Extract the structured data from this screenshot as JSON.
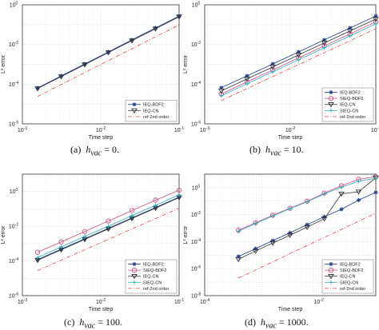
{
  "captions": [
    {
      "label": "(a)",
      "symbol": "h",
      "subscript": "vac",
      "rest": " = 0."
    },
    {
      "label": "(b)",
      "symbol": "h",
      "subscript": "vac",
      "rest": " = 10."
    },
    {
      "label": "(c)",
      "symbol": "h",
      "subscript": "vac",
      "rest": " = 100."
    },
    {
      "label": "(d)",
      "symbol": "h",
      "subscript": "vac",
      "rest": " = 1000."
    }
  ],
  "styles": {
    "IEQ-BDF2": {
      "color": "#1f3d8a",
      "marker": "star",
      "dash": ""
    },
    "SIEQ-BDF2": {
      "color": "#d0508a",
      "marker": "circle",
      "dash": ""
    },
    "IEQ-CN": {
      "color": "#333333",
      "marker": "triangle",
      "dash": ""
    },
    "SIEQ-CN": {
      "color": "#2ab0b0",
      "marker": "plus",
      "dash": ""
    },
    "ref-2nd order": {
      "color": "#e34a4a",
      "marker": "none",
      "dash": "5,2,1,2"
    }
  },
  "chart_data": [
    {
      "type": "line",
      "xscale": "log",
      "yscale": "log",
      "xlabel": "Time step",
      "ylabel": "L² error",
      "xlim": [
        0.001,
        0.1
      ],
      "ylim": [
        1e-06,
        1
      ],
      "xticks": [
        {
          "v": 0.001,
          "base": "10",
          "exp": "-3"
        },
        {
          "v": 0.01,
          "base": "10",
          "exp": "-2"
        },
        {
          "v": 0.1,
          "base": "10",
          "exp": "-1"
        }
      ],
      "yticks": [
        {
          "v": 1e-06,
          "base": "10",
          "exp": "-6"
        },
        {
          "v": 0.0001,
          "base": "10",
          "exp": "-4"
        },
        {
          "v": 0.01,
          "base": "10",
          "exp": "-2"
        },
        {
          "v": 1,
          "base": "10",
          "exp": "0"
        }
      ],
      "legend": "bottom-right",
      "series": [
        {
          "name": "IEQ-BDF2",
          "x": [
            0.0015625,
            0.003125,
            0.00625,
            0.0125,
            0.025,
            0.05,
            0.1
          ],
          "y": [
            6.4e-05,
            0.00026,
            0.00105,
            0.0042,
            0.017,
            0.068,
            0.27
          ]
        },
        {
          "name": "IEQ-CN",
          "x": [
            0.0015625,
            0.003125,
            0.00625,
            0.0125,
            0.025,
            0.05,
            0.1
          ],
          "y": [
            6e-05,
            0.00024,
            0.00096,
            0.0039,
            0.0155,
            0.062,
            0.25
          ]
        },
        {
          "name": "ref-2nd order",
          "x": [
            0.0015625,
            0.1
          ],
          "y": [
            2.4e-05,
            0.098
          ]
        }
      ]
    },
    {
      "type": "line",
      "xscale": "log",
      "yscale": "log",
      "xlabel": "Time step",
      "ylabel": "L² error",
      "xlim": [
        0.001,
        0.1
      ],
      "ylim": [
        1e-06,
        1
      ],
      "xticks": [
        {
          "v": 0.001,
          "base": "10",
          "exp": "-3"
        },
        {
          "v": 0.01,
          "base": "10",
          "exp": "-2"
        },
        {
          "v": 0.1,
          "base": "10",
          "exp": "-1"
        }
      ],
      "yticks": [
        {
          "v": 1e-06,
          "base": "10",
          "exp": "-6"
        },
        {
          "v": 0.0001,
          "base": "10",
          "exp": "-4"
        },
        {
          "v": 0.01,
          "base": "10",
          "exp": "-2"
        },
        {
          "v": 1,
          "base": "10",
          "exp": "0"
        }
      ],
      "legend": "bottom-right",
      "series": [
        {
          "name": "IEQ-BDF2",
          "x": [
            0.0015625,
            0.003125,
            0.00625,
            0.0125,
            0.025,
            0.05,
            0.1
          ],
          "y": [
            6.6e-05,
            0.00026,
            0.00105,
            0.0042,
            0.017,
            0.068,
            0.27
          ]
        },
        {
          "name": "SIEQ-BDF2",
          "x": [
            0.0015625,
            0.003125,
            0.00625,
            0.0125,
            0.025,
            0.05,
            0.1
          ],
          "y": [
            3.2e-05,
            0.00013,
            0.00052,
            0.0021,
            0.0085,
            0.034,
            0.14
          ]
        },
        {
          "name": "IEQ-CN",
          "x": [
            0.0015625,
            0.003125,
            0.00625,
            0.0125,
            0.025,
            0.05,
            0.1
          ],
          "y": [
            4.6e-05,
            0.000185,
            0.00074,
            0.003,
            0.012,
            0.048,
            0.19
          ]
        },
        {
          "name": "SIEQ-CN",
          "x": [
            0.0015625,
            0.003125,
            0.00625,
            0.0125,
            0.025,
            0.05,
            0.1
          ],
          "y": [
            2.6e-05,
            0.000105,
            0.00042,
            0.0017,
            0.0068,
            0.027,
            0.11
          ]
        },
        {
          "name": "ref-2nd order",
          "x": [
            0.0015625,
            0.1
          ],
          "y": [
            1.5e-05,
            0.062
          ]
        }
      ]
    },
    {
      "type": "line",
      "xscale": "log",
      "yscale": "log",
      "xlabel": "Time step",
      "ylabel": "L² error",
      "xlim": [
        0.001,
        0.1
      ],
      "ylim": [
        1e-06,
        10
      ],
      "xticks": [
        {
          "v": 0.001,
          "base": "10",
          "exp": "-3"
        },
        {
          "v": 0.01,
          "base": "10",
          "exp": "-2"
        },
        {
          "v": 0.1,
          "base": "10",
          "exp": "-1"
        }
      ],
      "yticks": [
        {
          "v": 1e-06,
          "base": "10",
          "exp": "-6"
        },
        {
          "v": 0.0001,
          "base": "10",
          "exp": "-4"
        },
        {
          "v": 0.01,
          "base": "10",
          "exp": "-2"
        },
        {
          "v": 1,
          "base": "10",
          "exp": "0"
        }
      ],
      "legend": "bottom-right",
      "series": [
        {
          "name": "IEQ-BDF2",
          "x": [
            0.0015625,
            0.003125,
            0.00625,
            0.0125,
            0.025,
            0.05,
            0.1
          ],
          "y": [
            0.00012,
            0.00048,
            0.0019,
            0.0076,
            0.03,
            0.12,
            0.48
          ]
        },
        {
          "name": "SIEQ-BDF2",
          "x": [
            0.0015625,
            0.003125,
            0.00625,
            0.0125,
            0.025,
            0.05,
            0.1
          ],
          "y": [
            0.00032,
            0.00125,
            0.005,
            0.02,
            0.08,
            0.32,
            1.2
          ]
        },
        {
          "name": "IEQ-CN",
          "x": [
            0.0015625,
            0.003125,
            0.00625,
            0.0125,
            0.025,
            0.05,
            0.1
          ],
          "y": [
            0.00011,
            0.00044,
            0.00175,
            0.007,
            0.028,
            0.11,
            0.45
          ]
        },
        {
          "name": "SIEQ-CN",
          "x": [
            0.0015625,
            0.003125,
            0.00625,
            0.0125,
            0.025,
            0.05,
            0.1
          ],
          "y": [
            0.00016,
            0.00064,
            0.0026,
            0.01,
            0.041,
            0.16,
            0.65
          ]
        },
        {
          "name": "ref-2nd order",
          "x": [
            0.0015625,
            0.1
          ],
          "y": [
            2.8e-05,
            0.11
          ]
        }
      ]
    },
    {
      "type": "line",
      "xscale": "log",
      "yscale": "log",
      "xlabel": "Time step",
      "ylabel": "L² error",
      "xlim": [
        0.0001,
        0.1
      ],
      "ylim": [
        1e-08,
        10
      ],
      "xticks": [
        {
          "v": 0.0001,
          "base": "10",
          "exp": "-4"
        },
        {
          "v": 0.01,
          "base": "10",
          "exp": "-2"
        },
        {
          "v": 1,
          "base": "10",
          "exp": "0"
        }
      ],
      "yticks": [
        {
          "v": 1e-08,
          "base": "10",
          "exp": "-8"
        },
        {
          "v": 1e-06,
          "base": "10",
          "exp": "-6"
        },
        {
          "v": 0.0001,
          "base": "10",
          "exp": "-4"
        },
        {
          "v": 0.01,
          "base": "10",
          "exp": "-2"
        },
        {
          "v": 1,
          "base": "10",
          "exp": "0"
        }
      ],
      "legend": "bottom-right",
      "series": [
        {
          "name": "IEQ-BDF2",
          "x": [
            0.00039,
            0.00078,
            0.0015625,
            0.003125,
            0.00625,
            0.0125,
            0.025,
            0.05,
            0.1
          ],
          "y": [
            8e-06,
            3e-05,
            0.00012,
            0.00045,
            0.0018,
            0.007,
            0.025,
            0.12,
            0.45
          ]
        },
        {
          "name": "SIEQ-BDF2",
          "x": [
            0.00039,
            0.00078,
            0.0015625,
            0.003125,
            0.00625,
            0.0125,
            0.025,
            0.05,
            0.1
          ],
          "y": [
            0.0007,
            0.0025,
            0.009,
            0.03,
            0.1,
            0.4,
            1.4,
            4.2,
            6.5
          ]
        },
        {
          "name": "IEQ-CN",
          "x": [
            0.00039,
            0.00078,
            0.0015625,
            0.003125,
            0.00625,
            0.0125,
            0.025,
            0.05,
            0.1
          ],
          "y": [
            5e-06,
            2e-05,
            8e-05,
            0.0003,
            0.0012,
            0.005,
            0.35,
            0.5,
            5.5
          ]
        },
        {
          "name": "SIEQ-CN",
          "x": [
            0.00039,
            0.00078,
            0.0015625,
            0.003125,
            0.00625,
            0.0125,
            0.025,
            0.05,
            0.1
          ],
          "y": [
            0.0006,
            0.0022,
            0.008,
            0.028,
            0.09,
            0.35,
            1.1,
            3.0,
            5.0
          ]
        },
        {
          "name": "ref-2nd order",
          "x": [
            0.00039,
            0.1
          ],
          "y": [
            2e-07,
            0.013
          ]
        }
      ]
    }
  ]
}
